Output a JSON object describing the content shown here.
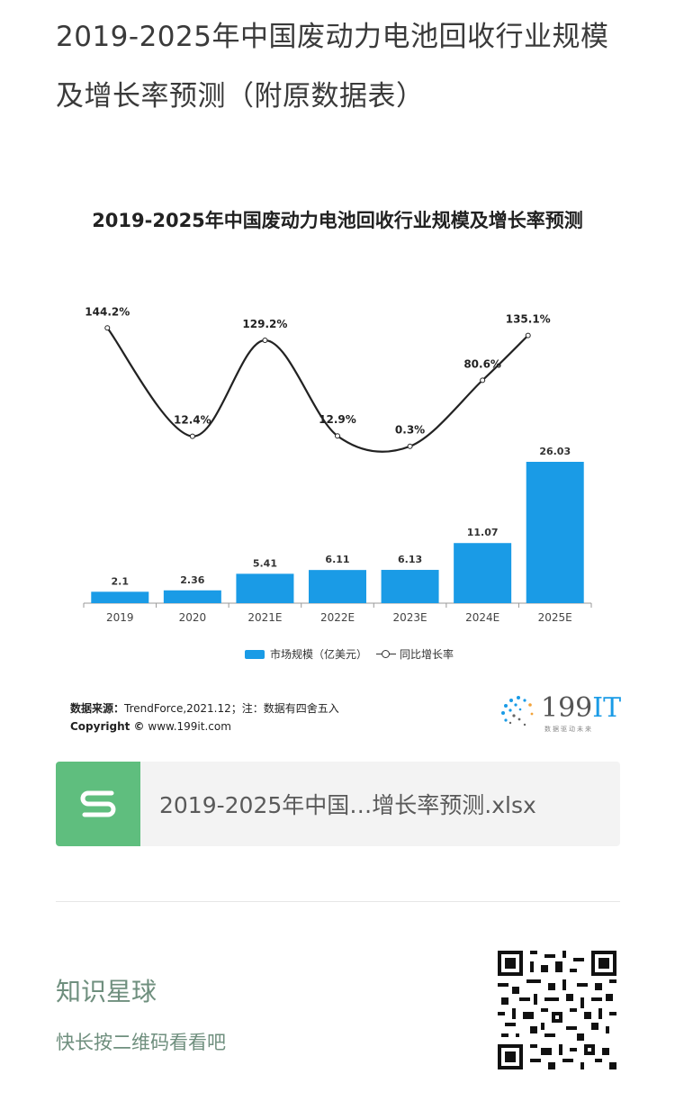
{
  "page": {
    "title": "2019-2025年中国废动力电池回收行业规模及增长率预测（附原数据表）"
  },
  "chart": {
    "title": "2019-2025年中国废动力电池回收行业规模及增长率预测",
    "legend_bar": "市场规模（亿美元）",
    "legend_line": "同比增长率",
    "source_label": "数据来源：",
    "source_text": "TrendForce,2021.12；注：数据有四舍五入",
    "copyright_label": "Copyright ©",
    "copyright_text": "www.199it.com",
    "logo_text": "199",
    "logo_accent": "IT",
    "logo_sub": "数据驱动未来"
  },
  "chart_data": {
    "type": "bar",
    "categories": [
      "2019",
      "2020",
      "2021E",
      "2022E",
      "2023E",
      "2024E",
      "2025E"
    ],
    "series": [
      {
        "name": "市场规模（亿美元）",
        "type": "bar",
        "values": [
          2.1,
          2.36,
          5.41,
          6.11,
          6.13,
          11.07,
          26.03
        ],
        "labels": [
          "2.1",
          "2.36",
          "5.41",
          "6.11",
          "6.13",
          "11.07",
          "26.03"
        ]
      },
      {
        "name": "同比增长率",
        "type": "line",
        "values": [
          144.2,
          12.4,
          129.2,
          12.9,
          0.3,
          80.6,
          135.1
        ],
        "labels": [
          "144.2%",
          "12.4%",
          "129.2%",
          "12.9%",
          "0.3%",
          "80.6%",
          "135.1%"
        ]
      }
    ],
    "colors": {
      "bar": "#1a9be6",
      "line": "#222222"
    },
    "legend": "bottom"
  },
  "file": {
    "icon": "s-document-icon",
    "name": "2019-2025年中国…增长率预测.xlsx",
    "icon_color": "#5fbe7e"
  },
  "footer": {
    "title": "知识星球",
    "subtitle": "快长按二维码看看吧",
    "qr_icon": "qr-code-icon"
  }
}
